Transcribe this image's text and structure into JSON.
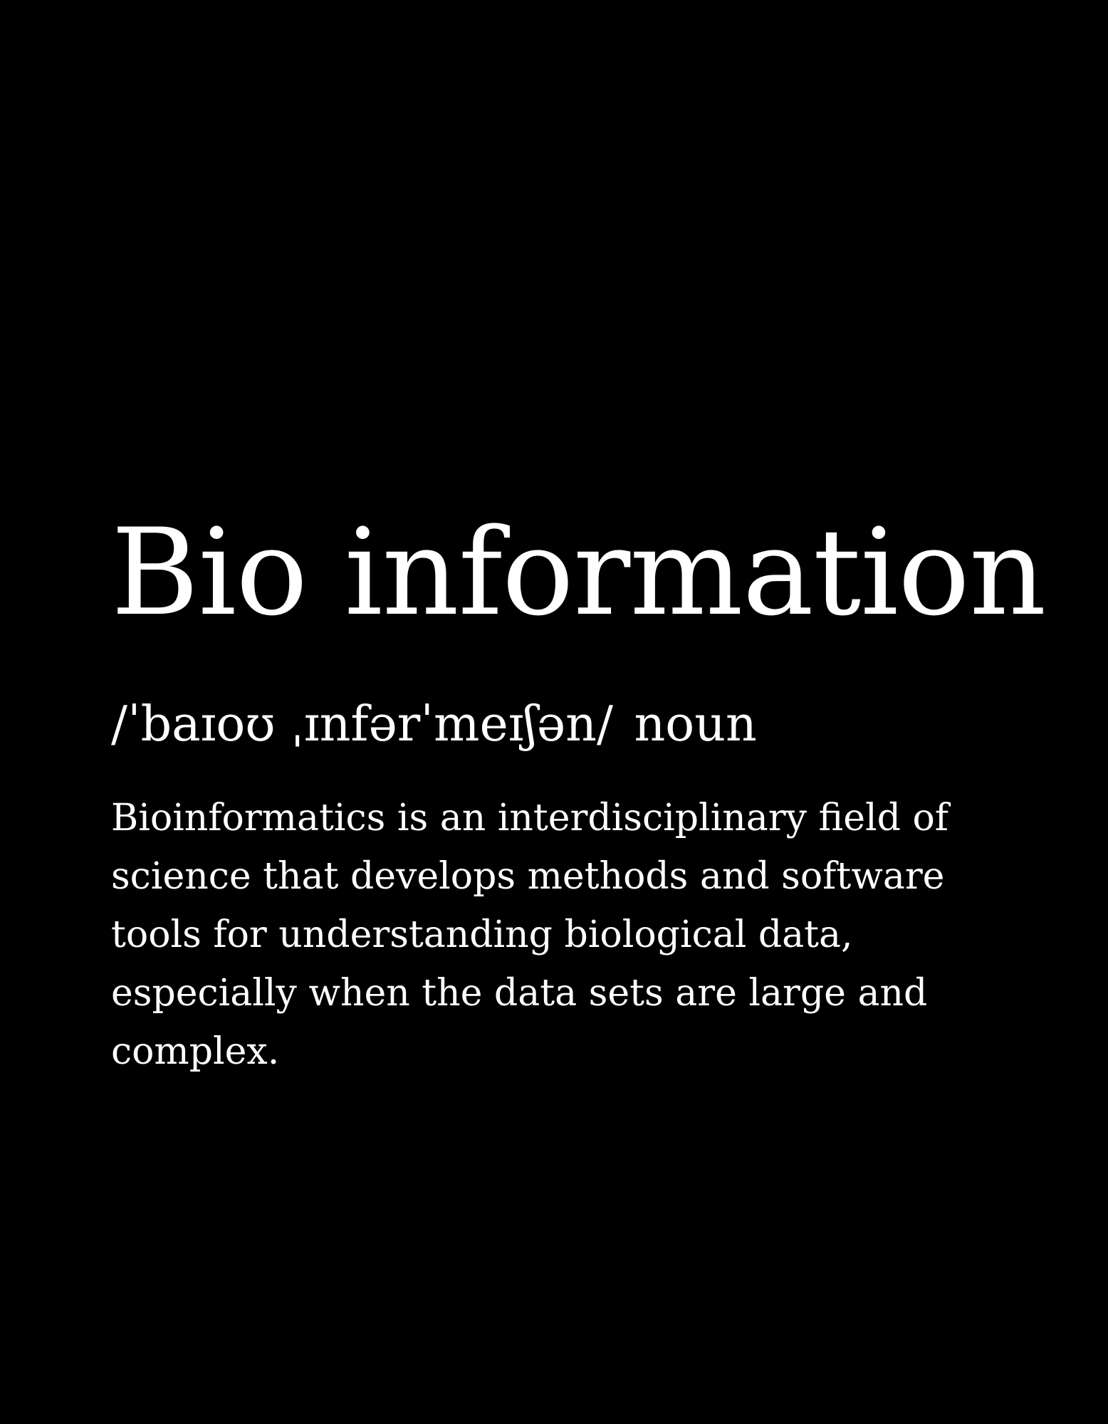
{
  "entry": {
    "term": "Bio information",
    "pronunciation": "/ˈbaɪoʊ ˌɪnfərˈmeɪʃən/",
    "part_of_speech": "noun",
    "definition": "Bioinformatics is an interdisciplinary field of science that develops methods and software tools for understanding biological data, especially when the data sets are large and complex."
  },
  "colors": {
    "background": "#000000",
    "text": "#ffffff"
  }
}
